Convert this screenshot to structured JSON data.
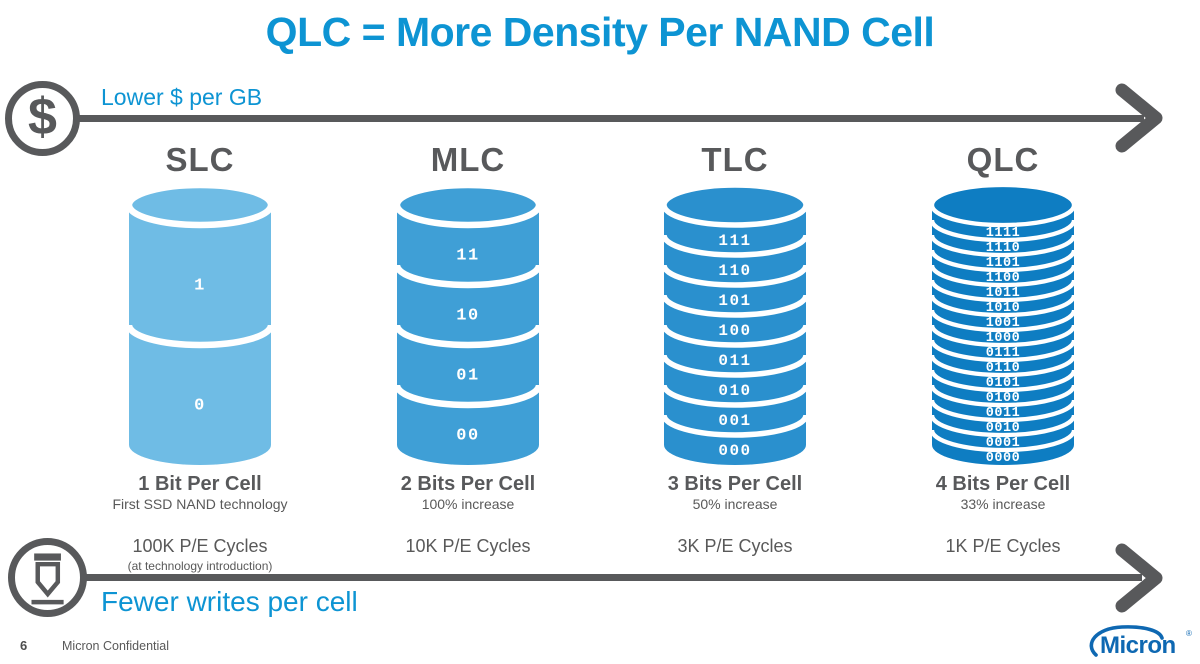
{
  "slide": {
    "title": "QLC = More Density Per NAND Cell",
    "page_number": "6",
    "confidential_label": "Micron Confidential",
    "logo_text": "Micron",
    "logo_reg_mark": "®"
  },
  "top_axis": {
    "icon": "dollar-icon",
    "icon_symbol": "$",
    "label": "Lower $ per GB"
  },
  "bottom_axis": {
    "icon": "pen-icon",
    "label": "Fewer writes per cell"
  },
  "columns": [
    {
      "name": "SLC",
      "color": "#6fbce5",
      "segments": [
        "1",
        "0"
      ],
      "bits_title": "1 Bit Per Cell",
      "bits_sub": "First SSD NAND technology",
      "pe_cycles": "100K P/E Cycles",
      "pe_note": "(at technology introduction)"
    },
    {
      "name": "MLC",
      "color": "#3f9fd6",
      "segments": [
        "11",
        "10",
        "01",
        "00"
      ],
      "bits_title": "2 Bits Per Cell",
      "bits_sub": "100% increase",
      "pe_cycles": "10K P/E Cycles",
      "pe_note": ""
    },
    {
      "name": "TLC",
      "color": "#2a90ce",
      "segments": [
        "111",
        "110",
        "101",
        "100",
        "011",
        "010",
        "001",
        "000"
      ],
      "bits_title": "3 Bits Per Cell",
      "bits_sub": "50% increase",
      "pe_cycles": "3K P/E Cycles",
      "pe_note": ""
    },
    {
      "name": "QLC",
      "color": "#0e7dc2",
      "segments": [
        "1111",
        "1110",
        "1101",
        "1100",
        "1011",
        "1010",
        "1001",
        "1000",
        "0111",
        "0110",
        "0101",
        "0100",
        "0011",
        "0010",
        "0001",
        "0000"
      ],
      "bits_title": "4 Bits Per Cell",
      "bits_sub": "33% increase",
      "pe_cycles": "1K P/E Cycles",
      "pe_note": ""
    }
  ],
  "colors": {
    "accent_blue": "#0d94d3",
    "arrow_gray": "#58595b",
    "slc_blue": "#6fbce5",
    "mlc_blue": "#3f9fd6",
    "tlc_blue": "#2a90ce",
    "qlc_blue": "#0e7dc2",
    "logo_blue": "#0e68b2",
    "segment_label_white": "#ffffff"
  }
}
